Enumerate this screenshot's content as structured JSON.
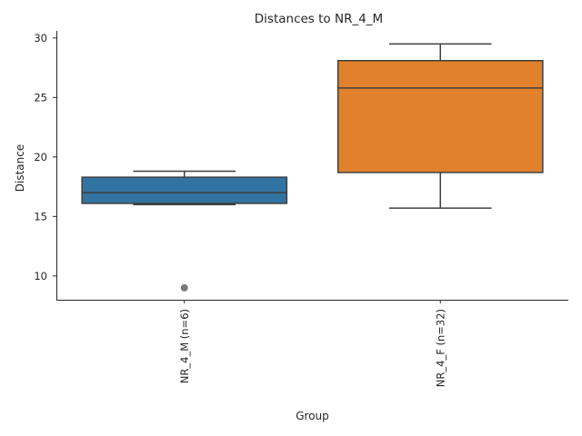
{
  "chart_data": {
    "type": "box",
    "title": "Distances to NR_4_M",
    "xlabel": "Group",
    "ylabel": "Distance",
    "ylim": [
      8.0,
      30.6
    ],
    "yticks": [
      10,
      15,
      20,
      25,
      30
    ],
    "grid": false,
    "categories": [
      "NR_4_M (n=6)",
      "NR_4_F (n=32)"
    ],
    "boxes": [
      {
        "name": "NR_4_M (n=6)",
        "color": "#3274a1",
        "whisker_low": 16.0,
        "q1": 16.1,
        "median": 17.0,
        "q3": 18.3,
        "whisker_high": 18.8,
        "outliers": [
          9.0
        ]
      },
      {
        "name": "NR_4_F (n=32)",
        "color": "#e1812c",
        "whisker_low": 15.7,
        "q1": 18.7,
        "median": 25.8,
        "q3": 28.1,
        "whisker_high": 29.5,
        "outliers": []
      }
    ]
  }
}
